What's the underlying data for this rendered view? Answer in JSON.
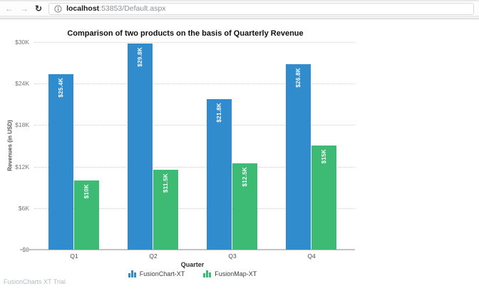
{
  "browser": {
    "back_icon": "←",
    "forward_icon": "→",
    "reload_icon": "↻",
    "url_host": "localhost",
    "url_rest": ":53853/Default.aspx"
  },
  "chart_data": {
    "type": "bar",
    "title": "Comparison of two products on the basis of Quarterly Revenue",
    "xlabel": "Quarter",
    "ylabel": "Revenues (in USD)",
    "categories": [
      "Q1",
      "Q2",
      "Q3",
      "Q4"
    ],
    "series": [
      {
        "name": "FusionChart-XT",
        "color": "#318cce",
        "values": [
          25400,
          29800,
          21800,
          26800
        ],
        "labels": [
          "$25.4K",
          "$29.8K",
          "$21.8K",
          "$26.8K"
        ]
      },
      {
        "name": "FusionMap-XT",
        "color": "#3dba74",
        "values": [
          10000,
          11500,
          12500,
          15000
        ],
        "labels": [
          "$10K",
          "$11.5K",
          "$12.5K",
          "$15K"
        ]
      }
    ],
    "ylim": [
      0,
      30000
    ],
    "yticks": [
      {
        "label": "$30K",
        "value": 30000
      },
      {
        "label": "$24K",
        "value": 24000
      },
      {
        "label": "$18K",
        "value": 18000
      },
      {
        "label": "$12K",
        "value": 12000
      },
      {
        "label": "$6K",
        "value": 6000
      },
      {
        "label": "$0",
        "value": 0
      }
    ],
    "grid": "dotted-horizontal",
    "legend_position": "bottom"
  },
  "footer": {
    "trial_text": "FusionCharts XT Trial"
  }
}
